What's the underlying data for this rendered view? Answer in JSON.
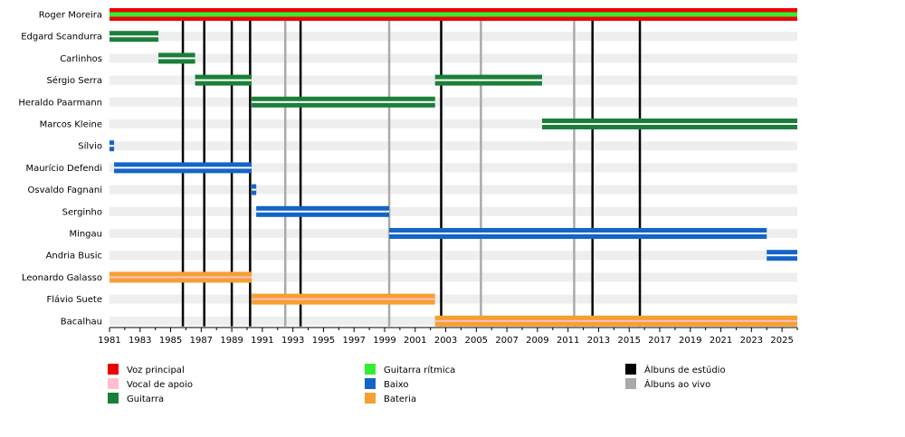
{
  "chart_data": {
    "type": "timeline",
    "x_range": [
      1981,
      2026
    ],
    "x_ticks": [
      "1981",
      "1983",
      "1985",
      "1987",
      "1989",
      "1991",
      "1993",
      "1995",
      "1997",
      "1999",
      "2001",
      "2003",
      "2005",
      "2007",
      "2009",
      "2011",
      "2013",
      "2015",
      "2017",
      "2019",
      "2021",
      "2023",
      "2025"
    ],
    "members": [
      {
        "name": "Roger Moreira",
        "bars": [
          {
            "start": 1981,
            "end": 2026,
            "roles": [
              "vocal",
              "rhythm",
              "guitar"
            ]
          }
        ]
      },
      {
        "name": "Edgard Scandurra",
        "bars": [
          {
            "start": 1981,
            "end": 1984.2,
            "roles": [
              "guitar"
            ]
          }
        ]
      },
      {
        "name": "Carlinhos",
        "bars": [
          {
            "start": 1984.2,
            "end": 1986.6,
            "roles": [
              "guitar"
            ]
          }
        ]
      },
      {
        "name": "Sérgio Serra",
        "bars": [
          {
            "start": 1986.6,
            "end": 1990.3,
            "roles": [
              "guitar"
            ]
          },
          {
            "start": 2002.3,
            "end": 2009.3,
            "roles": [
              "guitar"
            ]
          }
        ]
      },
      {
        "name": "Heraldo Paarmann",
        "bars": [
          {
            "start": 1990.3,
            "end": 2002.3,
            "roles": [
              "guitar"
            ]
          }
        ]
      },
      {
        "name": "Marcos Kleine",
        "bars": [
          {
            "start": 2009.3,
            "end": 2026,
            "roles": [
              "guitar"
            ]
          }
        ]
      },
      {
        "name": "Sílvio",
        "bars": [
          {
            "start": 1981,
            "end": 1981.3,
            "roles": [
              "bass"
            ]
          }
        ]
      },
      {
        "name": "Maurício Defendi",
        "bars": [
          {
            "start": 1981.3,
            "end": 1990.3,
            "roles": [
              "bass"
            ]
          }
        ]
      },
      {
        "name": "Osvaldo Fagnani",
        "bars": [
          {
            "start": 1990.3,
            "end": 1990.6,
            "roles": [
              "bass"
            ]
          }
        ]
      },
      {
        "name": "Serginho",
        "bars": [
          {
            "start": 1990.6,
            "end": 1999.3,
            "roles": [
              "bass"
            ]
          }
        ]
      },
      {
        "name": "Mingau",
        "bars": [
          {
            "start": 1999.3,
            "end": 2024,
            "roles": [
              "bass"
            ]
          }
        ]
      },
      {
        "name": "Andria Busic",
        "bars": [
          {
            "start": 2024,
            "end": 2026,
            "roles": [
              "bass"
            ]
          }
        ]
      },
      {
        "name": "Leonardo Galasso",
        "bars": [
          {
            "start": 1981,
            "end": 1990.3,
            "roles": [
              "drums",
              "backing"
            ]
          }
        ]
      },
      {
        "name": "Flávio Suete",
        "bars": [
          {
            "start": 1990.3,
            "end": 2002.3,
            "roles": [
              "drums",
              "backing"
            ]
          }
        ]
      },
      {
        "name": "Bacalhau",
        "bars": [
          {
            "start": 2002.3,
            "end": 2026,
            "roles": [
              "drums",
              "backing"
            ]
          }
        ]
      }
    ],
    "studio_albums": [
      1985.8,
      1987.2,
      1989.0,
      1990.2,
      1993.5,
      2002.7,
      2012.6,
      2015.7
    ],
    "live_albums": [
      1992.5,
      1999.3,
      2005.3,
      2011.4
    ],
    "colors": {
      "vocal": "#ee0000",
      "backing": "#ffc0cb",
      "guitar": "#1a7f3a",
      "rhythm": "#33ee33",
      "bass": "#1464c8",
      "drums": "#f5a030",
      "studio": "#000000",
      "live": "#aaaaaa",
      "band": "#eeeeee"
    },
    "legend": [
      {
        "label": "Voz principal",
        "color": "#ee0000",
        "column": 0,
        "row": 0
      },
      {
        "label": "Vocal de apoio",
        "color": "#ffc0cb",
        "column": 0,
        "row": 1
      },
      {
        "label": "Guitarra",
        "color": "#1a7f3a",
        "column": 0,
        "row": 2
      },
      {
        "label": "Guitarra rítmica",
        "color": "#33ee33",
        "column": 1,
        "row": 0
      },
      {
        "label": "Baixo",
        "color": "#1464c8",
        "column": 1,
        "row": 1
      },
      {
        "label": "Bateria",
        "color": "#f5a030",
        "column": 1,
        "row": 2
      },
      {
        "label": "Álbuns de estúdio",
        "color": "#000000",
        "column": 2,
        "row": 0
      },
      {
        "label": "Álbuns ao vivo",
        "color": "#aaaaaa",
        "column": 2,
        "row": 1
      }
    ]
  }
}
